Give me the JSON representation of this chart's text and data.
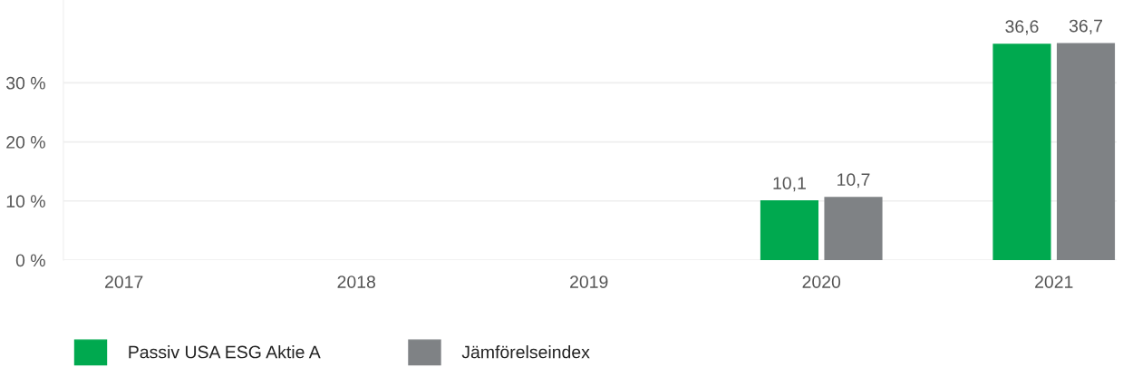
{
  "chart_data": {
    "type": "bar",
    "categories": [
      "2017",
      "2018",
      "2019",
      "2020",
      "2021"
    ],
    "series": [
      {
        "name": "Passiv USA ESG Aktie A",
        "color": "#00a94f",
        "values": [
          null,
          null,
          null,
          10.1,
          36.6
        ],
        "value_labels": [
          null,
          null,
          null,
          "10,1",
          "36,6"
        ]
      },
      {
        "name": "Jämförelseindex",
        "color": "#7f8285",
        "values": [
          null,
          null,
          null,
          10.7,
          36.7
        ],
        "value_labels": [
          null,
          null,
          null,
          "10,7",
          "36,7"
        ]
      }
    ],
    "ylim": [
      0,
      44
    ],
    "yticks": [
      {
        "value": 0,
        "label": "0 %"
      },
      {
        "value": 10,
        "label": "10 %"
      },
      {
        "value": 20,
        "label": "20 %"
      },
      {
        "value": 30,
        "label": "30 %"
      }
    ],
    "grid": "y",
    "legend": "bottom left"
  }
}
